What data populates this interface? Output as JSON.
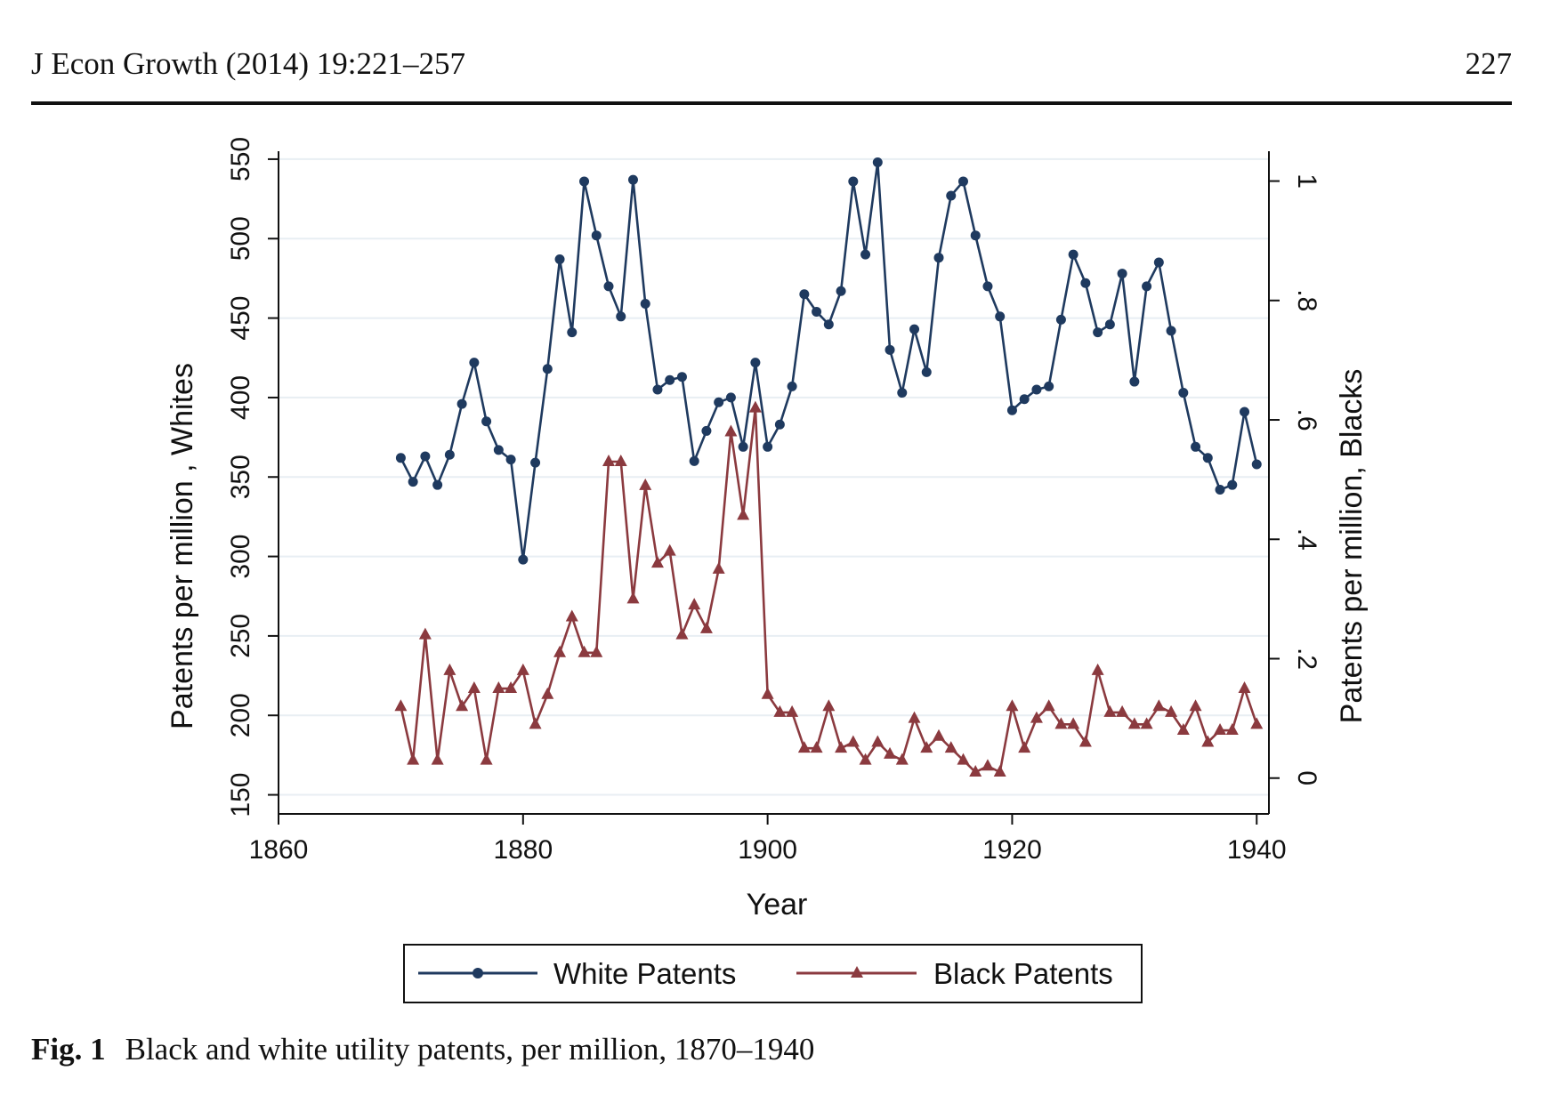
{
  "header": {
    "journal": "J Econ Growth (2014) 19:221–257",
    "page_number": "227"
  },
  "caption": {
    "label": "Fig. 1",
    "text": "Black and white utility patents, per million, 1870–1940"
  },
  "colors": {
    "white_series": "#1f3a5f",
    "black_series": "#8b3a3f",
    "grid": "#e8eef3"
  },
  "chart_data": {
    "type": "line",
    "xlabel": "Year",
    "ylabel_left": "Patents per million , Whites",
    "ylabel_right": "Patents per million, Blacks",
    "xlim": [
      1860,
      1941
    ],
    "ylim_left": [
      138,
      555
    ],
    "ylim_right": [
      -0.06,
      1.05
    ],
    "x_ticks": [
      1860,
      1880,
      1900,
      1920,
      1940
    ],
    "x_tick_labels": [
      "1860",
      "1880",
      "1900",
      "1920",
      "1940"
    ],
    "y_left_ticks": [
      150,
      200,
      250,
      300,
      350,
      400,
      450,
      500,
      550
    ],
    "y_left_tick_labels": [
      "150",
      "200",
      "250",
      "300",
      "350",
      "400",
      "450",
      "500",
      "550"
    ],
    "y_right_ticks": [
      0,
      0.2,
      0.4,
      0.6,
      0.8,
      1
    ],
    "y_right_tick_labels": [
      "0",
      ".2",
      ".4",
      ".6",
      ".8",
      "1"
    ],
    "grid": true,
    "legend_position": "bottom",
    "x": [
      1870,
      1871,
      1872,
      1873,
      1874,
      1875,
      1876,
      1877,
      1878,
      1879,
      1880,
      1881,
      1882,
      1883,
      1884,
      1885,
      1886,
      1887,
      1888,
      1889,
      1890,
      1891,
      1892,
      1893,
      1894,
      1895,
      1896,
      1897,
      1898,
      1899,
      1900,
      1901,
      1902,
      1903,
      1904,
      1905,
      1906,
      1907,
      1908,
      1909,
      1910,
      1911,
      1912,
      1913,
      1914,
      1915,
      1916,
      1917,
      1918,
      1919,
      1920,
      1921,
      1922,
      1923,
      1924,
      1925,
      1926,
      1927,
      1928,
      1929,
      1930,
      1931,
      1932,
      1933,
      1934,
      1935,
      1936,
      1937,
      1938,
      1939,
      1940
    ],
    "series": [
      {
        "name": "White Patents",
        "axis": "left",
        "marker": "circle",
        "values": [
          362,
          347,
          363,
          345,
          364,
          396,
          422,
          385,
          367,
          361,
          298,
          359,
          418,
          487,
          441,
          536,
          502,
          470,
          451,
          537,
          459,
          405,
          411,
          413,
          360,
          379,
          397,
          400,
          369,
          422,
          369,
          383,
          407,
          465,
          454,
          446,
          467,
          536,
          490,
          548,
          430,
          403,
          443,
          416,
          488,
          527,
          536,
          502,
          470,
          451,
          392,
          399,
          405,
          407,
          449,
          490,
          472,
          441,
          446,
          478,
          410,
          470,
          485,
          442,
          403,
          369,
          362,
          342,
          345,
          391,
          358
        ]
      },
      {
        "name": "Black Patents",
        "axis": "right",
        "marker": "triangle",
        "values": [
          0.12,
          0.03,
          0.24,
          0.03,
          0.18,
          0.12,
          0.15,
          0.03,
          0.15,
          0.15,
          0.18,
          0.09,
          0.14,
          0.21,
          0.27,
          0.21,
          0.21,
          0.53,
          0.53,
          0.3,
          0.49,
          0.36,
          0.38,
          0.24,
          0.29,
          0.25,
          0.35,
          0.58,
          0.44,
          0.62,
          0.14,
          0.11,
          0.11,
          0.05,
          0.05,
          0.12,
          0.05,
          0.06,
          0.03,
          0.06,
          0.04,
          0.03,
          0.1,
          0.05,
          0.07,
          0.05,
          0.03,
          0.01,
          0.02,
          0.01,
          0.12,
          0.05,
          0.1,
          0.12,
          0.09,
          0.09,
          0.06,
          0.18,
          0.11,
          0.11,
          0.09,
          0.09,
          0.12,
          0.11,
          0.08,
          0.12,
          0.06,
          0.08,
          0.08,
          0.15,
          0.09
        ]
      }
    ]
  }
}
